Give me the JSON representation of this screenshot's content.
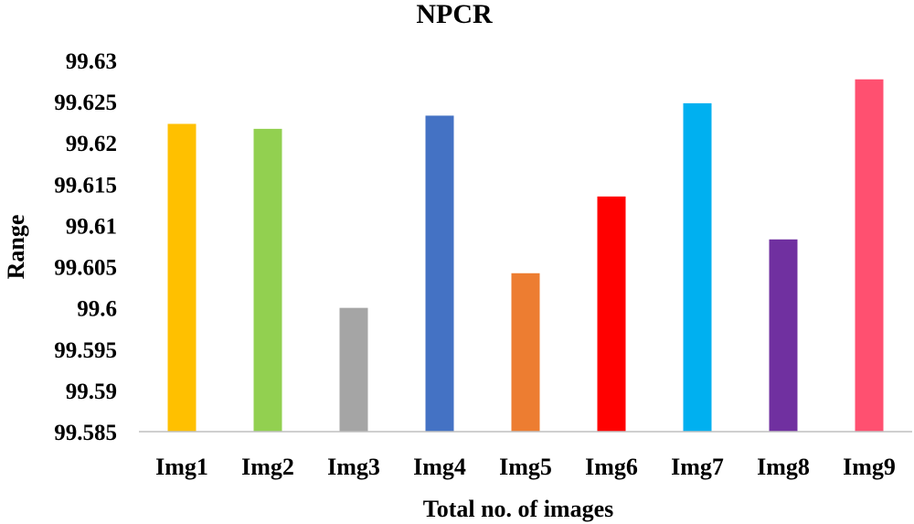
{
  "chart_data": {
    "type": "bar",
    "title": "NPCR",
    "xlabel": "Total no. of images",
    "ylabel": "Range",
    "categories": [
      "Img1",
      "Img2",
      "Img3",
      "Img4",
      "Img5",
      "Img6",
      "Img7",
      "Img8",
      "Img9"
    ],
    "values": [
      99.6223,
      99.6217,
      99.6,
      99.6233,
      99.6042,
      99.6135,
      99.6248,
      99.6083,
      99.6277
    ],
    "colors": [
      "#FFC000",
      "#92D050",
      "#A5A5A5",
      "#4472C4",
      "#ED7D31",
      "#FF0000",
      "#00B0F0",
      "#7030A0",
      "#FF5070"
    ],
    "ylim": [
      99.585,
      99.63
    ],
    "yticks": [
      "99.585",
      "99.59",
      "99.595",
      "99.6",
      "99.605",
      "99.61",
      "99.615",
      "99.62",
      "99.625",
      "99.63"
    ],
    "grid": false,
    "legend": "none"
  }
}
